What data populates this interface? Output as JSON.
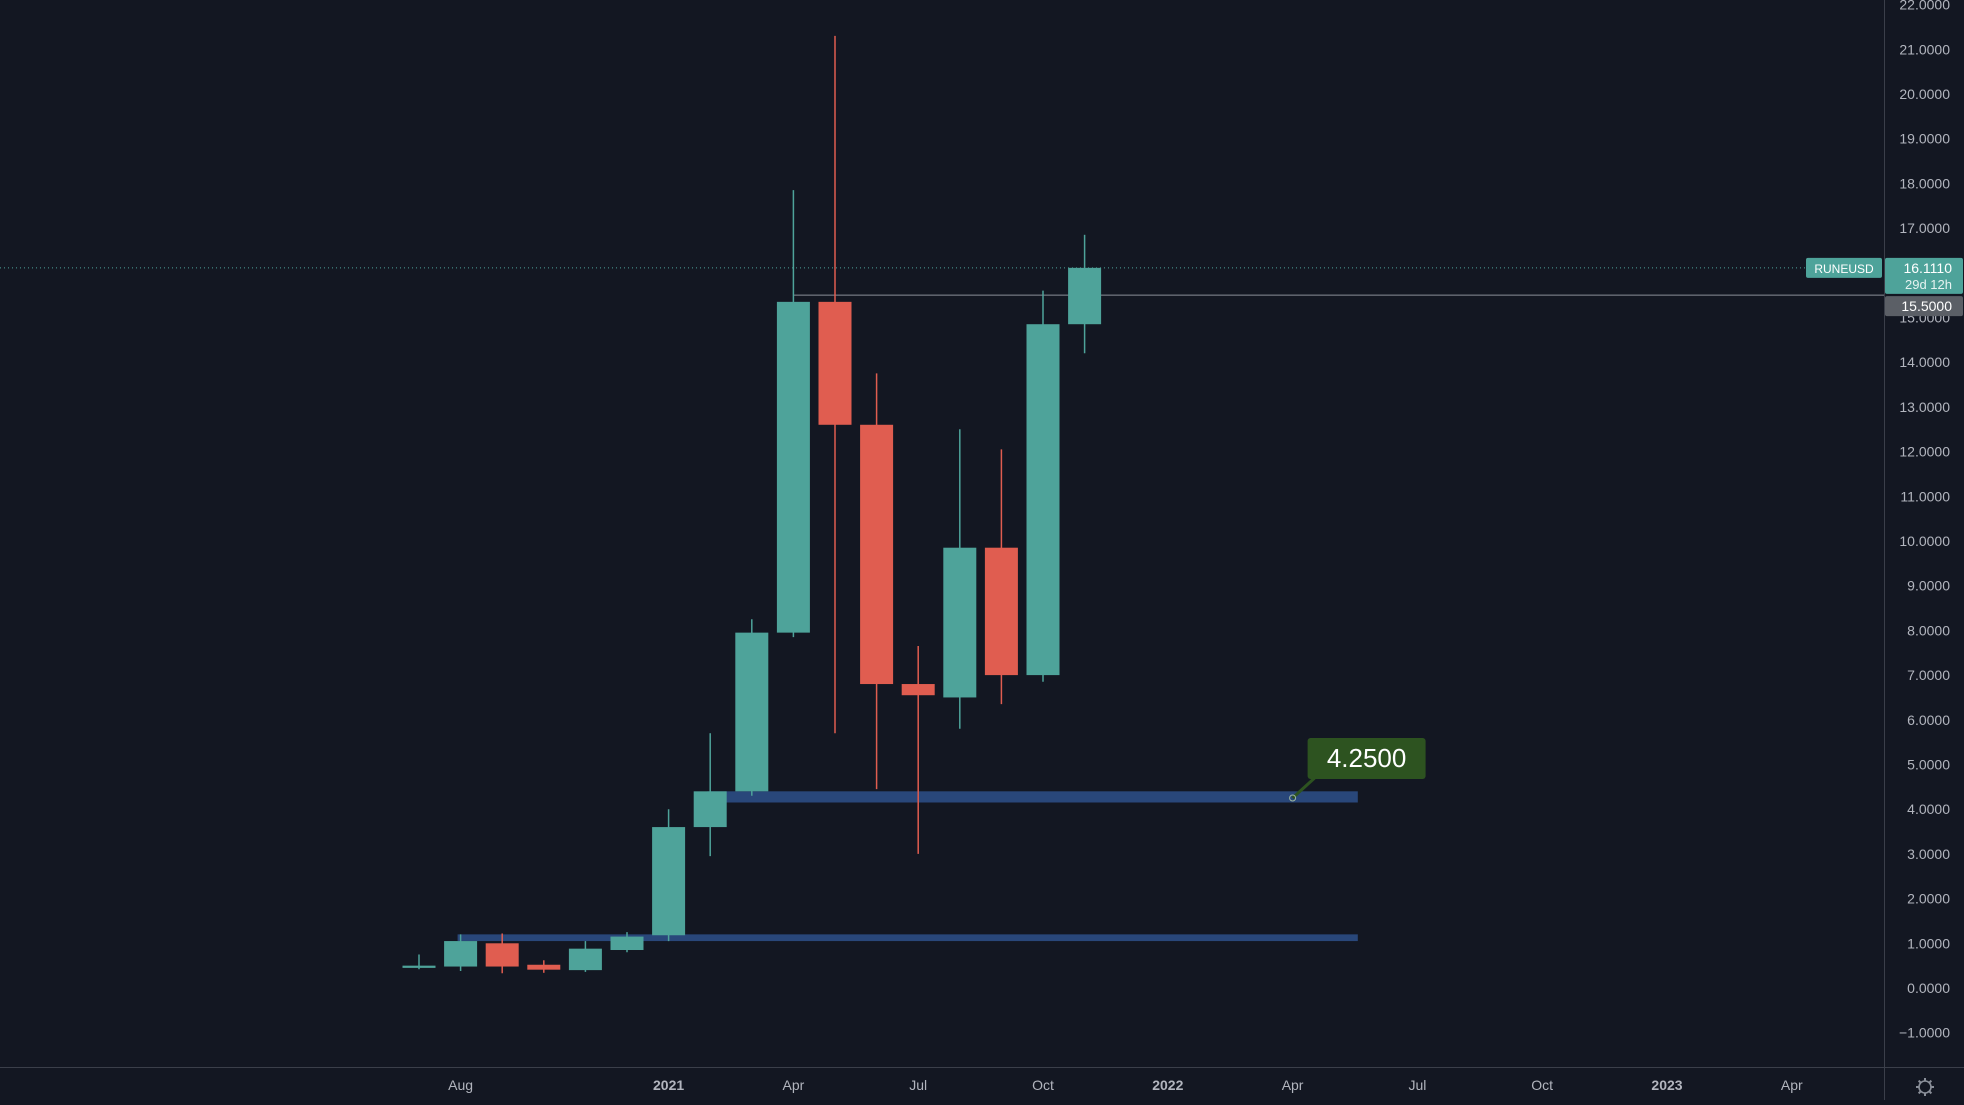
{
  "colors": {
    "background": "#131722",
    "up": "#4ea39a",
    "down": "#e05d50",
    "axis_line": "#3b3f4a",
    "axis_text": "#b2b5be",
    "zone": "#2a4a7f",
    "price_line": "#4ea39a",
    "level_line": "#8a8f99",
    "callout_bg": "#2d5320"
  },
  "settings_icon": "gear-icon",
  "chart_data": {
    "type": "candlestick",
    "symbol": "RUNEUSD",
    "interval": "monthly",
    "x_axis": {
      "ticks": [
        {
          "label": "Aug",
          "date": "2020-08",
          "bold": false
        },
        {
          "label": "2021",
          "date": "2021-01",
          "bold": true
        },
        {
          "label": "Apr",
          "date": "2021-04",
          "bold": false
        },
        {
          "label": "Jul",
          "date": "2021-07",
          "bold": false
        },
        {
          "label": "Oct",
          "date": "2021-10",
          "bold": false
        },
        {
          "label": "2022",
          "date": "2022-01",
          "bold": true
        },
        {
          "label": "Apr",
          "date": "2022-04",
          "bold": false
        },
        {
          "label": "Jul",
          "date": "2022-07",
          "bold": false
        },
        {
          "label": "Oct",
          "date": "2022-10",
          "bold": false
        },
        {
          "label": "2023",
          "date": "2023-01",
          "bold": true
        },
        {
          "label": "Apr",
          "date": "2023-04",
          "bold": false
        }
      ]
    },
    "y_axis": {
      "ticks": [
        "22.0000",
        "21.0000",
        "20.0000",
        "19.0000",
        "18.0000",
        "17.0000",
        "15.0000",
        "14.0000",
        "13.0000",
        "12.0000",
        "11.0000",
        "10.0000",
        "9.0000",
        "8.0000",
        "7.0000",
        "6.0000",
        "5.0000",
        "4.0000",
        "3.0000",
        "2.0000",
        "1.0000",
        "0.0000",
        "−1.0000"
      ],
      "ylim": [
        -1.5,
        22
      ]
    },
    "candles": [
      {
        "date": "2020-07",
        "open": 0.45,
        "high": 0.75,
        "low": 0.42,
        "close": 0.5
      },
      {
        "date": "2020-08",
        "open": 0.48,
        "high": 1.2,
        "low": 0.38,
        "close": 1.05
      },
      {
        "date": "2020-09",
        "open": 1.0,
        "high": 1.22,
        "low": 0.33,
        "close": 0.48
      },
      {
        "date": "2020-10",
        "open": 0.52,
        "high": 0.62,
        "low": 0.34,
        "close": 0.41
      },
      {
        "date": "2020-11",
        "open": 0.4,
        "high": 1.05,
        "low": 0.36,
        "close": 0.88
      },
      {
        "date": "2020-12",
        "open": 0.85,
        "high": 1.25,
        "low": 0.8,
        "close": 1.15
      },
      {
        "date": "2021-01",
        "open": 1.18,
        "high": 4.0,
        "low": 1.05,
        "close": 3.6
      },
      {
        "date": "2021-02",
        "open": 3.6,
        "high": 5.7,
        "low": 2.95,
        "close": 4.4
      },
      {
        "date": "2021-03",
        "open": 4.4,
        "high": 8.25,
        "low": 4.3,
        "close": 7.95
      },
      {
        "date": "2021-04",
        "open": 7.95,
        "high": 17.85,
        "low": 7.85,
        "close": 15.35
      },
      {
        "date": "2021-05",
        "open": 15.35,
        "high": 21.3,
        "low": 5.7,
        "close": 12.6
      },
      {
        "date": "2021-06",
        "open": 12.6,
        "high": 13.75,
        "low": 4.45,
        "close": 6.8
      },
      {
        "date": "2021-07",
        "open": 6.8,
        "high": 7.65,
        "low": 3.0,
        "close": 6.55
      },
      {
        "date": "2021-08",
        "open": 6.5,
        "high": 12.5,
        "low": 5.8,
        "close": 9.85
      },
      {
        "date": "2021-09",
        "open": 9.85,
        "high": 12.05,
        "low": 6.35,
        "close": 7.0
      },
      {
        "date": "2021-10",
        "open": 7.0,
        "high": 15.6,
        "low": 6.85,
        "close": 14.85
      },
      {
        "date": "2021-11",
        "open": 14.85,
        "high": 16.85,
        "low": 14.2,
        "close": 16.111
      }
    ],
    "zones": [
      {
        "from": "2021-02",
        "to": "2022-06",
        "low": 4.15,
        "high": 4.4
      },
      {
        "from": "2020-08",
        "to": "2022-06",
        "low": 1.05,
        "high": 1.2
      }
    ],
    "horizontal_line": {
      "value": 15.5,
      "label": "15.5000",
      "from": "2021-04"
    },
    "last_price": {
      "value": 16.111,
      "label": "16.1110",
      "countdown": "29d 12h",
      "symbol_tag": "RUNEUSD"
    },
    "callout": {
      "text": "4.2500",
      "value": 4.25,
      "anchor_date": "2022-04"
    }
  }
}
